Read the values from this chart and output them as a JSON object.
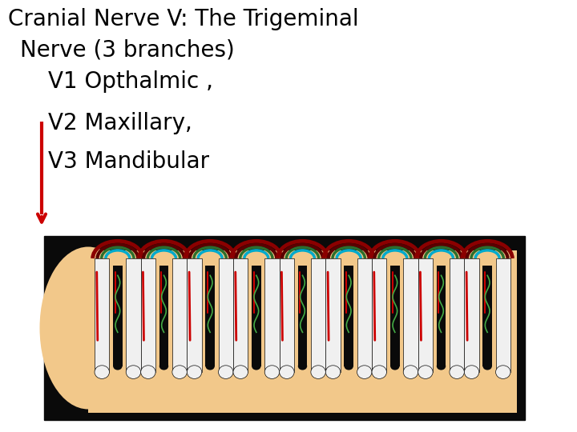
{
  "background_color": "#ffffff",
  "title_line1": "Cranial Nerve V: The Trigeminal",
  "title_line2": "  Nerve (3 branches)",
  "line3": "      V1 Opthalmic ,",
  "line4": "      V2 Maxillary,",
  "line5": "      V3 Mandibular",
  "font_size": 20,
  "arrow_color": "#cc0000",
  "skin_color": "#f2c88a",
  "dark_color": "#0a0a0a",
  "white_color": "#f0f0f0",
  "red_color": "#8b0000",
  "green_color": "#2d6e2d",
  "blue_color": "#00aacc",
  "bright_red": "#cc0000",
  "n_teeth": 9
}
